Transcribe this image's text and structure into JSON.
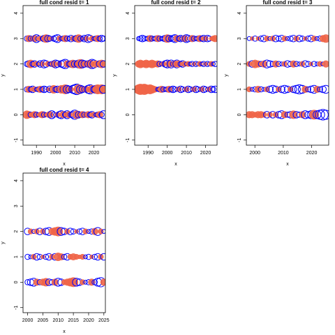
{
  "colors": {
    "positive": "#0000ff",
    "negative": "#ef6548"
  },
  "chart_data": [
    {
      "type": "scatter",
      "title": "full cond resid t= 1",
      "xlabel": "x",
      "ylabel": "y",
      "xlim": [
        1983,
        2026
      ],
      "ylim": [
        -1.2,
        4.3
      ],
      "xticks": [
        1990,
        2000,
        2010,
        2020
      ],
      "yticks": [
        -1,
        0,
        1,
        2,
        3,
        4
      ],
      "x_start": 1985,
      "x_end": 2025,
      "rows": [
        {
          "y": 3,
          "sizes": [
            4,
            5,
            4,
            3,
            5,
            6,
            4,
            4,
            3,
            5,
            6,
            5,
            4,
            3,
            4,
            5,
            6,
            4,
            3,
            4,
            5,
            4,
            3,
            5,
            4,
            4,
            5,
            6,
            4,
            3,
            5,
            4,
            6,
            5,
            4,
            3,
            4,
            5,
            4,
            5,
            4
          ],
          "signs": [
            1,
            -1,
            1,
            1,
            -1,
            1,
            1,
            -1,
            1,
            1,
            -1,
            1,
            1,
            -1,
            1,
            1,
            1,
            -1,
            1,
            1,
            -1,
            1,
            1,
            1,
            -1,
            1,
            1,
            -1,
            1,
            1,
            1,
            -1,
            1,
            1,
            -1,
            1,
            1,
            -1,
            1,
            1,
            1
          ]
        },
        {
          "y": 2,
          "sizes": [
            4,
            5,
            6,
            4,
            5,
            4,
            3,
            5,
            4,
            6,
            5,
            4,
            3,
            4,
            5,
            6,
            5,
            4,
            5,
            6,
            7,
            5,
            4,
            5,
            6,
            5,
            4,
            6,
            7,
            6,
            5,
            4,
            5,
            6,
            7,
            6,
            5,
            4,
            5,
            6,
            5
          ],
          "signs": [
            1,
            1,
            -1,
            1,
            1,
            -1,
            1,
            1,
            -1,
            1,
            1,
            -1,
            1,
            1,
            -1,
            1,
            1,
            -1,
            1,
            1,
            1,
            -1,
            1,
            1,
            -1,
            1,
            1,
            1,
            -1,
            1,
            1,
            -1,
            1,
            -1,
            1,
            1,
            -1,
            -1,
            1,
            -1,
            1
          ]
        },
        {
          "y": 1,
          "sizes": [
            4,
            5,
            4,
            5,
            4,
            3,
            4,
            5,
            4,
            5,
            4,
            3,
            5,
            4,
            6,
            4,
            5,
            4,
            6,
            5,
            7,
            6,
            5,
            4,
            6,
            7,
            8,
            7,
            6,
            5,
            4,
            5,
            6,
            7,
            6,
            5,
            6,
            7,
            6,
            7,
            6
          ],
          "signs": [
            1,
            -1,
            1,
            1,
            -1,
            1,
            1,
            -1,
            1,
            1,
            1,
            -1,
            1,
            1,
            -1,
            1,
            1,
            1,
            -1,
            1,
            -1,
            1,
            1,
            -1,
            1,
            1,
            1,
            -1,
            1,
            1,
            1,
            -1,
            1,
            1,
            -1,
            1,
            1,
            -1,
            -1,
            -1,
            1
          ]
        },
        {
          "y": 0,
          "sizes": [
            6,
            5,
            4,
            4,
            5,
            4,
            3,
            4,
            5,
            4,
            3,
            4,
            5,
            6,
            4,
            3,
            4,
            5,
            6,
            5,
            4,
            6,
            5,
            4,
            5,
            7,
            6,
            5,
            4,
            5,
            4,
            3,
            5,
            4,
            5,
            4,
            3,
            4,
            5,
            4,
            6
          ],
          "signs": [
            -1,
            -1,
            1,
            -1,
            -1,
            1,
            1,
            -1,
            -1,
            1,
            1,
            -1,
            -1,
            1,
            1,
            1,
            -1,
            1,
            1,
            -1,
            1,
            1,
            -1,
            1,
            1,
            1,
            -1,
            1,
            1,
            -1,
            1,
            1,
            -1,
            1,
            1,
            -1,
            1,
            1,
            -1,
            1,
            1
          ]
        }
      ]
    },
    {
      "type": "scatter",
      "title": "full cond resid t= 2",
      "xlabel": "x",
      "ylabel": "y",
      "xlim": [
        1983,
        2026
      ],
      "ylim": [
        -1.2,
        4.3
      ],
      "xticks": [
        1990,
        2000,
        2010,
        2020
      ],
      "yticks": [
        -1,
        0,
        1,
        2,
        3,
        4
      ],
      "x_start": 1985,
      "x_end": 2025,
      "rows": [
        {
          "y": 3,
          "sizes": [
            3,
            4,
            5,
            4,
            3,
            4,
            5,
            4,
            3,
            4,
            5,
            4,
            3,
            4,
            5,
            6,
            5,
            4,
            5,
            6,
            5,
            4,
            5,
            4,
            5,
            6,
            5,
            4,
            5,
            4,
            3,
            4,
            5,
            4,
            5,
            4,
            5,
            4,
            3,
            4,
            5
          ],
          "signs": [
            1,
            1,
            1,
            1,
            1,
            1,
            -1,
            1,
            1,
            1,
            -1,
            1,
            1,
            1,
            1,
            -1,
            1,
            1,
            1,
            1,
            -1,
            1,
            1,
            1,
            -1,
            1,
            1,
            1,
            -1,
            1,
            1,
            1,
            -1,
            1,
            1,
            -1,
            1,
            1,
            -1,
            -1,
            -1
          ]
        },
        {
          "y": 2,
          "sizes": [
            5,
            6,
            5,
            5,
            6,
            5,
            5,
            6,
            5,
            4,
            5,
            4,
            3,
            4,
            5,
            6,
            5,
            6,
            4,
            5,
            6,
            5,
            4,
            5,
            4,
            3,
            4,
            3,
            4,
            3,
            4,
            3,
            4,
            3,
            4,
            3,
            4,
            3,
            4,
            3,
            4
          ],
          "signs": [
            -1,
            -1,
            -1,
            -1,
            -1,
            -1,
            -1,
            -1,
            -1,
            -1,
            -1,
            1,
            1,
            -1,
            1,
            1,
            -1,
            1,
            1,
            -1,
            1,
            -1,
            1,
            1,
            -1,
            1,
            -1,
            1,
            1,
            -1,
            1,
            1,
            -1,
            1,
            1,
            -1,
            1,
            1,
            -1,
            1,
            1
          ]
        },
        {
          "y": 1,
          "sizes": [
            7,
            8,
            7,
            8,
            7,
            6,
            7,
            6,
            5,
            4,
            3,
            4,
            5,
            4,
            3,
            4,
            5,
            4,
            5,
            4,
            3,
            4,
            5,
            4,
            3,
            4,
            5,
            4,
            3,
            4,
            5,
            4,
            3,
            4,
            5,
            4,
            3,
            4,
            5,
            4,
            5
          ],
          "signs": [
            -1,
            -1,
            -1,
            -1,
            -1,
            -1,
            -1,
            -1,
            -1,
            -1,
            1,
            1,
            -1,
            1,
            1,
            1,
            -1,
            1,
            1,
            1,
            1,
            -1,
            1,
            1,
            1,
            -1,
            1,
            1,
            1,
            -1,
            1,
            1,
            1,
            -1,
            1,
            1,
            1,
            -1,
            1,
            1,
            1
          ]
        }
      ]
    },
    {
      "type": "scatter",
      "title": "full cond resid t= 3",
      "xlabel": "x",
      "ylabel": "y",
      "xlim": [
        1997,
        2026
      ],
      "ylim": [
        -1.2,
        4.3
      ],
      "xticks": [
        2000,
        2010,
        2020
      ],
      "yticks": [
        -1,
        0,
        1,
        2,
        3,
        4
      ],
      "x_start": 1998,
      "x_end": 2025,
      "rows": [
        {
          "y": 3,
          "sizes": [
            3,
            3,
            4,
            3,
            4,
            5,
            4,
            3,
            4,
            5,
            4,
            5,
            4,
            3,
            4,
            5,
            4,
            5,
            4,
            3,
            4,
            5,
            4,
            3,
            4,
            5,
            6
          ],
          "signs": [
            1,
            -1,
            1,
            -1,
            1,
            1,
            -1,
            1,
            -1,
            1,
            1,
            1,
            -1,
            1,
            1,
            1,
            -1,
            1,
            1,
            -1,
            1,
            1,
            -1,
            1,
            1,
            -1,
            -1
          ]
        },
        {
          "y": 2,
          "sizes": [
            4,
            5,
            6,
            5,
            4,
            5,
            6,
            5,
            4,
            5,
            4,
            3,
            4,
            5,
            4,
            5,
            4,
            3,
            4,
            5,
            4,
            3,
            4,
            3,
            4,
            3,
            5
          ],
          "signs": [
            -1,
            1,
            -1,
            -1,
            1,
            -1,
            1,
            1,
            1,
            -1,
            1,
            1,
            -1,
            1,
            1,
            -1,
            1,
            1,
            -1,
            1,
            1,
            -1,
            1,
            1,
            -1,
            1,
            -1
          ]
        },
        {
          "y": 1,
          "sizes": [
            4,
            3,
            4,
            5,
            4,
            3,
            4,
            5,
            6,
            5,
            4,
            5,
            6,
            5,
            4,
            5,
            6,
            7,
            6,
            5,
            4,
            5,
            6,
            5,
            4,
            5,
            6
          ],
          "signs": [
            -1,
            1,
            1,
            -1,
            1,
            1,
            -1,
            1,
            1,
            1,
            -1,
            1,
            1,
            1,
            -1,
            1,
            1,
            1,
            1,
            -1,
            1,
            1,
            1,
            -1,
            1,
            1,
            1
          ]
        },
        {
          "y": 0,
          "sizes": [
            5,
            5,
            4,
            5,
            5,
            4,
            5,
            4,
            5,
            4,
            5,
            6,
            5,
            4,
            5,
            6,
            5,
            4,
            5,
            6,
            5,
            6,
            7,
            6,
            7,
            8,
            7
          ],
          "signs": [
            -1,
            -1,
            -1,
            -1,
            -1,
            -1,
            1,
            -1,
            1,
            -1,
            1,
            1,
            -1,
            1,
            1,
            -1,
            1,
            1,
            -1,
            1,
            1,
            1,
            -1,
            1,
            1,
            1,
            1
          ]
        }
      ]
    },
    {
      "type": "scatter",
      "title": "full cond resid t= 4",
      "xlabel": "x",
      "ylabel": "y",
      "xlim": [
        1998.5,
        2025.5
      ],
      "ylim": [
        -1.2,
        4.3
      ],
      "xticks": [
        2000,
        2005,
        2010,
        2015,
        2020,
        2025
      ],
      "yticks": [
        -1,
        0,
        1,
        2,
        3,
        4
      ],
      "x_start": 2000,
      "x_end": 2025,
      "rows": [
        {
          "y": 2,
          "sizes": [
            5,
            4,
            3,
            4,
            5,
            4,
            5,
            6,
            5,
            6,
            7,
            6,
            5,
            4,
            5,
            4,
            3,
            4,
            5,
            4,
            3,
            4,
            5,
            6,
            4,
            3
          ],
          "signs": [
            1,
            -1,
            1,
            -1,
            1,
            -1,
            1,
            1,
            -1,
            -1,
            -1,
            1,
            1,
            -1,
            1,
            1,
            -1,
            1,
            1,
            -1,
            1,
            1,
            -1,
            1,
            -1,
            1
          ]
        },
        {
          "y": 1,
          "sizes": [
            4,
            3,
            4,
            5,
            4,
            3,
            4,
            5,
            4,
            5,
            6,
            5,
            4,
            5,
            4,
            5,
            4,
            3,
            4,
            3,
            4,
            3,
            4,
            5,
            4,
            5
          ],
          "signs": [
            1,
            1,
            -1,
            1,
            1,
            -1,
            1,
            1,
            -1,
            1,
            -1,
            -1,
            1,
            1,
            -1,
            -1,
            -1,
            -1,
            -1,
            1,
            1,
            -1,
            1,
            1,
            -1,
            1
          ]
        },
        {
          "y": 0,
          "sizes": [
            4,
            5,
            6,
            5,
            4,
            5,
            6,
            5,
            4,
            5,
            6,
            5,
            4,
            5,
            6,
            7,
            6,
            5,
            4,
            3,
            4,
            5,
            4,
            6,
            7,
            5
          ],
          "signs": [
            1,
            1,
            1,
            -1,
            1,
            -1,
            -1,
            1,
            1,
            -1,
            1,
            1,
            -1,
            -1,
            -1,
            -1,
            1,
            1,
            -1,
            1,
            1,
            -1,
            1,
            1,
            1,
            -1
          ]
        }
      ]
    }
  ]
}
